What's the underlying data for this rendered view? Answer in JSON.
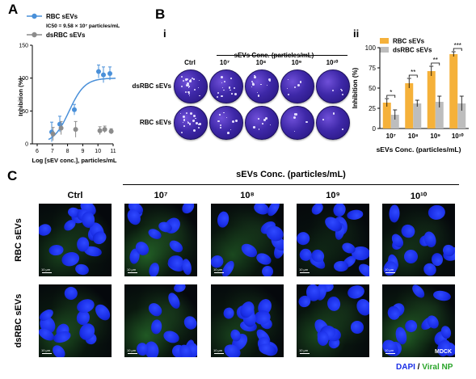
{
  "panels": {
    "A": "A",
    "B": "B",
    "C": "C",
    "Bi": "i",
    "Bii": "ii"
  },
  "panelA": {
    "legend": [
      "RBC sEVs",
      "IC50 = 9.58 × 10⁷ particles/mL",
      "dsRBC sEVs"
    ],
    "xlabel": "Log [sEV conc.], particles/mL",
    "ylabel": "Inhibition (%)",
    "xticks": [
      "6",
      "7",
      "8",
      "9",
      "10",
      "11"
    ],
    "yticks": [
      "0",
      "50",
      "100",
      "150"
    ]
  },
  "panelBi": {
    "title": "sEVs Conc. (particles/mL)",
    "cols": [
      "Ctrl",
      "10⁷",
      "10⁸",
      "10⁹",
      "10¹⁰"
    ],
    "rows": [
      "dsRBC sEVs",
      "RBC sEVs"
    ]
  },
  "panelBii": {
    "legend": [
      "RBC sEVs",
      "dsRBC sEVs"
    ],
    "xlabel": "sEVs Conc. (particles/mL)",
    "ylabel": "Inhibition (%)",
    "xticks": [
      "10⁷",
      "10⁸",
      "10⁹",
      "10¹⁰"
    ],
    "yticks": [
      "0",
      "25",
      "50",
      "75",
      "100"
    ],
    "signif": [
      "*",
      "**",
      "**",
      "***"
    ]
  },
  "panelC": {
    "title": "sEVs Conc. (particles/mL)",
    "cols": [
      "Ctrl",
      "10⁷",
      "10⁸",
      "10⁹",
      "10¹⁰"
    ],
    "rows": [
      "RBC sEVs",
      "dsRBC sEVs"
    ],
    "scale": "10 μm",
    "cellline": "MDCK",
    "stain_dapi": "DAPI",
    "stain_sep": " / ",
    "stain_np": "Viral NP"
  },
  "chart_data": [
    {
      "type": "scatter",
      "xlabel": "Log [sEV conc.], particles/mL",
      "ylabel": "Inhibition (%)",
      "xlim": [
        6,
        11
      ],
      "ylim": [
        0,
        150
      ],
      "series": [
        {
          "name": "RBC sEVs",
          "color": "#4a90d9",
          "x": [
            6.9,
            7.4,
            8.3,
            9.8,
            10.1,
            10.5
          ],
          "y": [
            18,
            30,
            52,
            110,
            105,
            107
          ],
          "err": [
            15,
            12,
            8,
            10,
            12,
            10
          ]
        },
        {
          "name": "dsRBC sEVs",
          "color": "#8c8c8c",
          "x": [
            6.9,
            7.4,
            8.3,
            9.8,
            10.1,
            10.5
          ],
          "y": [
            15,
            24,
            22,
            20,
            22,
            19
          ],
          "err": [
            10,
            10,
            12,
            6,
            5,
            4
          ]
        }
      ]
    },
    {
      "type": "bar",
      "categories": [
        "10⁷",
        "10⁸",
        "10⁹",
        "10¹⁰"
      ],
      "xlabel": "sEVs Conc. (particles/mL)",
      "ylabel": "Inhibition (%)",
      "ylim": [
        0,
        100
      ],
      "series": [
        {
          "name": "RBC sEVs",
          "color": "#f5b13a",
          "values": [
            32,
            56,
            71,
            92
          ],
          "err": [
            5,
            6,
            6,
            3
          ]
        },
        {
          "name": "dsRBC sEVs",
          "color": "#bdbdbd",
          "values": [
            17,
            31,
            33,
            31
          ],
          "err": [
            6,
            4,
            7,
            9
          ]
        }
      ]
    }
  ]
}
